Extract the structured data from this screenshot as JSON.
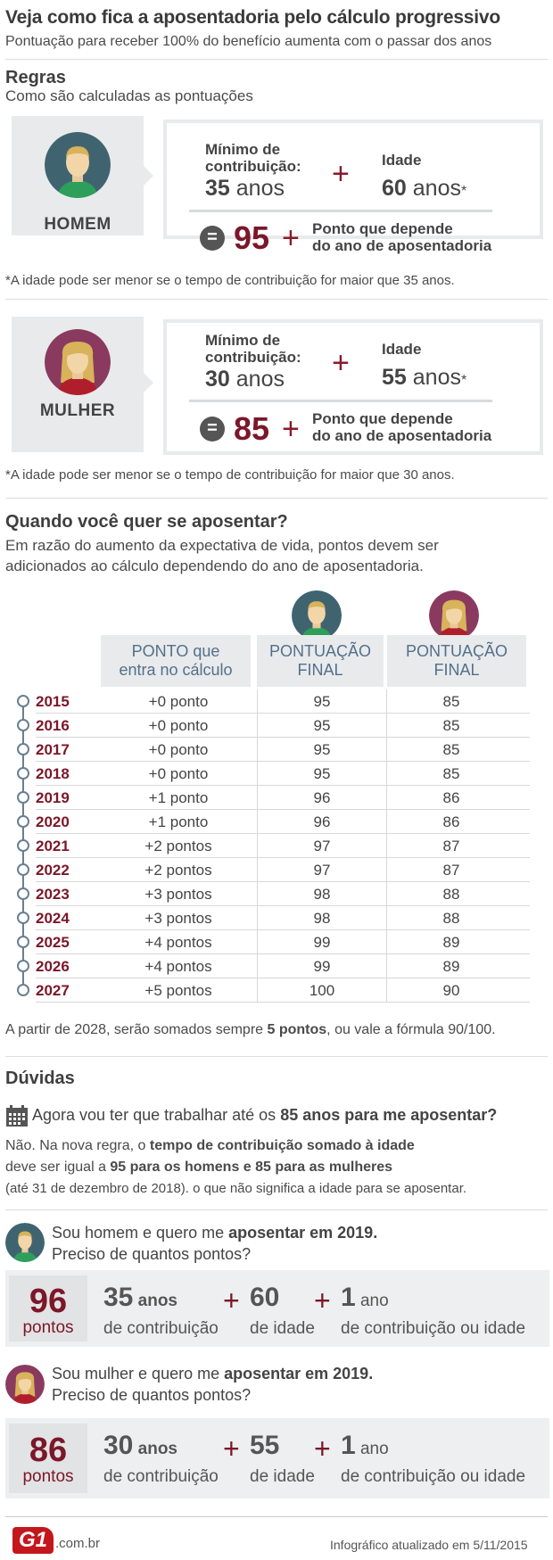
{
  "header": {
    "title": "Veja como fica a aposentadoria pelo cálculo progressivo",
    "subtitle": "Pontuação para receber 100% do benefício aumenta com o passar dos anos"
  },
  "rules": {
    "heading": "Regras",
    "subheading": "Como são calculadas as pontuações",
    "man": {
      "label": "HOMEM",
      "min_label_1": "Mínimo de",
      "min_label_2": "contribuição:",
      "min_value": "35",
      "min_unit": " anos",
      "age_label": "Idade",
      "age_value": "60",
      "age_unit": " anos",
      "asterisk": "*",
      "equals": "=",
      "total": "95",
      "point_1": "Ponto que depende",
      "point_2": "do ano de aposentadoria",
      "note": "*A idade pode ser menor se o tempo de contribuição for maior que 35 anos."
    },
    "woman": {
      "label": "MULHER",
      "min_label_1": "Mínimo de",
      "min_label_2": "contribuição:",
      "min_value": "30",
      "min_unit": " anos",
      "age_label": "Idade",
      "age_value": "55",
      "age_unit": " anos",
      "asterisk": "*",
      "equals": "=",
      "total": "85",
      "point_1": "Ponto que depende",
      "point_2": "do ano de aposentadoria",
      "note": "*A idade pode ser menor se o tempo de contribuição for maior que 30 anos."
    },
    "plus": "+"
  },
  "when": {
    "heading": "Quando você quer se aposentar?",
    "desc_1": "Em razão do aumento da expectativa de vida, pontos devem ser",
    "desc_2": "adicionados ao cálculo dependendo do ano de aposentadoria.",
    "col1_1": "PONTO que",
    "col1_2": "entra no cálculo",
    "col2_1": "PONTUAÇÃO",
    "col2_2": "FINAL",
    "col3_1": "PONTUAÇÃO",
    "col3_2": "FINAL",
    "rows": [
      {
        "year": "2015",
        "point": "+0 ponto",
        "man": "95",
        "woman": "85"
      },
      {
        "year": "2016",
        "point": "+0 ponto",
        "man": "95",
        "woman": "85"
      },
      {
        "year": "2017",
        "point": "+0 ponto",
        "man": "95",
        "woman": "85"
      },
      {
        "year": "2018",
        "point": "+0 ponto",
        "man": "95",
        "woman": "85"
      },
      {
        "year": "2019",
        "point": "+1 ponto",
        "man": "96",
        "woman": "86"
      },
      {
        "year": "2020",
        "point": "+1 ponto",
        "man": "96",
        "woman": "86"
      },
      {
        "year": "2021",
        "point": "+2 pontos",
        "man": "97",
        "woman": "87"
      },
      {
        "year": "2022",
        "point": "+2 pontos",
        "man": "97",
        "woman": "87"
      },
      {
        "year": "2023",
        "point": "+3 pontos",
        "man": "98",
        "woman": "88"
      },
      {
        "year": "2024",
        "point": "+3 pontos",
        "man": "98",
        "woman": "88"
      },
      {
        "year": "2025",
        "point": "+4 pontos",
        "man": "99",
        "woman": "89"
      },
      {
        "year": "2026",
        "point": "+4 pontos",
        "man": "99",
        "woman": "89"
      },
      {
        "year": "2027",
        "point": "+5 pontos",
        "man": "100",
        "woman": "90"
      }
    ],
    "after_1": "A partir de 2028, serão somados sempre ",
    "after_bold": "5 pontos",
    "after_2": ", ou vale a fórmula 90/100."
  },
  "faq": {
    "heading": "Dúvidas",
    "q1_a": "Agora vou ter que trabalhar até os ",
    "q1_b": "85 anos para me aposentar?",
    "a1_1a": "Não. Na nova regra, o ",
    "a1_1b": "tempo de contribuição somado à idade",
    "a1_2a": "deve ser igual a ",
    "a1_2b": "95 para os homens e 85 para as mulheres",
    "a1_3": "(até 31 de dezembro de 2018). o que não significa a idade para se aposentar.",
    "q2_1a": "Sou homem e quero me ",
    "q2_1b": "aposentar em 2019.",
    "q2_2": "Preciso de quantos pontos?",
    "q3_1a": "Sou mulher e quero me ",
    "q3_1b": "aposentar em 2019.",
    "q3_2": "Preciso de quantos pontos?",
    "man_calc": {
      "total": "96",
      "total_label": "pontos",
      "v1": "35",
      "v1_unit": " anos",
      "v1_label": "de contribuição",
      "v2": "60",
      "v2_label": "de idade",
      "v3": "1",
      "v3_unit": " ano",
      "v3_label": "de contribuição ou idade"
    },
    "woman_calc": {
      "total": "86",
      "total_label": "pontos",
      "v1": "30",
      "v1_unit": " anos",
      "v1_label": "de contribuição",
      "v2": "55",
      "v2_label": "de idade",
      "v3": "1",
      "v3_unit": " ano",
      "v3_label": "de contribuição ou idade"
    }
  },
  "footer": {
    "logo": "G1",
    "domain": ".com.br",
    "updated": "Infográfico atualizado em 5/11/2015"
  },
  "colors": {
    "accent": "#7b1729",
    "man_circle": "#3f6470",
    "woman_circle": "#8a3a5e",
    "card_gray": "#e8eaec"
  },
  "icons": [
    "man-avatar-icon",
    "woman-avatar-icon",
    "calendar-icon",
    "timeline-dot-icon",
    "g1-logo"
  ]
}
